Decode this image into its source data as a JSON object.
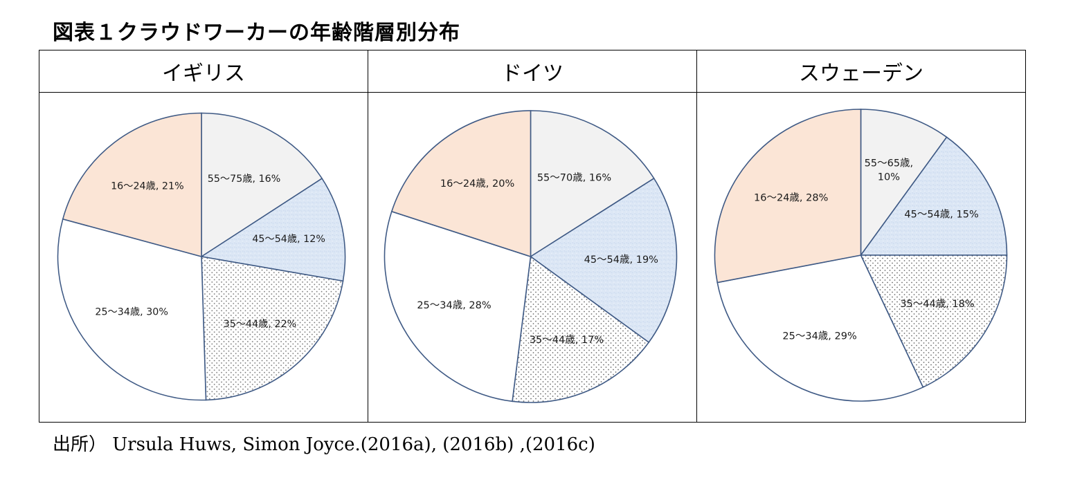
{
  "figure_title": "図表１クラウドワーカーの年齢階層別分布",
  "source_note": "出所） Ursula Huws, Simon Joyce.(2016a), (2016b) ,(2016c)",
  "colors": {
    "age_16_24": "#fbe5d6",
    "age_25_34": "#ffffff",
    "age_35_44": "#ffffff dotted",
    "age_45_54": "#dce7f5",
    "age_55_plus": "#f2f2f2",
    "outline": "#3f5a85"
  },
  "chart_data": [
    {
      "type": "pie",
      "title": "イギリス",
      "slices": [
        {
          "label": "55〜75歳, 16%",
          "group": "55+",
          "value": 16
        },
        {
          "label": "45〜54歳, 12%",
          "group": "45-54",
          "value": 12
        },
        {
          "label": "35〜44歳, 22%",
          "group": "35-44",
          "value": 22
        },
        {
          "label": "25〜34歳, 30%",
          "group": "25-34",
          "value": 30
        },
        {
          "label": "16〜24歳, 21%",
          "group": "16-24",
          "value": 21
        }
      ]
    },
    {
      "type": "pie",
      "title": "ドイツ",
      "slices": [
        {
          "label": "55〜70歳, 16%",
          "group": "55+",
          "value": 16
        },
        {
          "label": "45〜54歳, 19%",
          "group": "45-54",
          "value": 19
        },
        {
          "label": "35〜44歳, 17%",
          "group": "35-44",
          "value": 17
        },
        {
          "label": "25〜34歳, 28%",
          "group": "25-34",
          "value": 28
        },
        {
          "label": "16〜24歳, 20%",
          "group": "16-24",
          "value": 20
        }
      ]
    },
    {
      "type": "pie",
      "title": "スウェーデン",
      "slices": [
        {
          "label": "55〜65歳,\n10%",
          "group": "55+",
          "value": 10
        },
        {
          "label": "45〜54歳, 15%",
          "group": "45-54",
          "value": 15
        },
        {
          "label": "35〜44歳, 18%",
          "group": "35-44",
          "value": 18
        },
        {
          "label": "25〜34歳, 29%",
          "group": "25-34",
          "value": 29
        },
        {
          "label": "16〜24歳, 28%",
          "group": "16-24",
          "value": 28
        }
      ]
    }
  ]
}
